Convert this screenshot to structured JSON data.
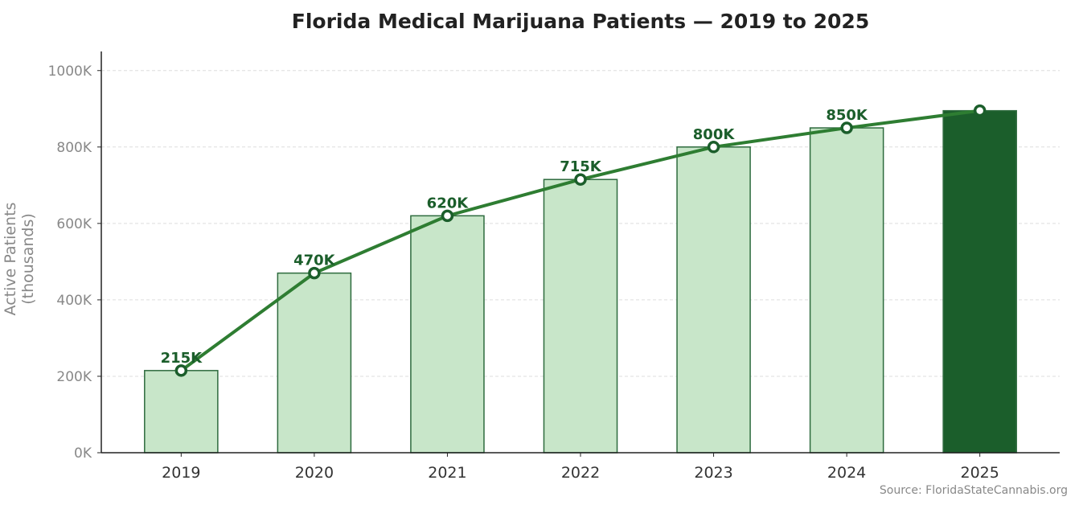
{
  "chart_data": {
    "type": "bar",
    "title": "Florida Medical Marijuana Patients — 2019 to 2025",
    "xlabel": "",
    "ylabel": "Active Patients (thousands)",
    "categories": [
      "2019",
      "2020",
      "2021",
      "2022",
      "2023",
      "2024",
      "2025"
    ],
    "values": [
      215,
      470,
      620,
      715,
      800,
      850,
      895
    ],
    "data_labels": [
      "215K",
      "470K",
      "620K",
      "715K",
      "800K",
      "850K",
      ""
    ],
    "line_overlay": true,
    "ylim": [
      0,
      1050
    ],
    "yticks": [
      0,
      200,
      400,
      600,
      800,
      1000
    ],
    "ytick_labels": [
      "0K",
      "200K",
      "400K",
      "600K",
      "800K",
      "1000K"
    ],
    "grid": "horizontal dashed",
    "highlight_category": "2025",
    "colors": {
      "bar": "#c8e6c9",
      "bar_edge": "#2e6b3e",
      "highlight": "#1b5e2b",
      "line": "#2e7d32",
      "label": "#1b5e2b"
    }
  },
  "source": "Source: FloridaStateCannabis.org"
}
